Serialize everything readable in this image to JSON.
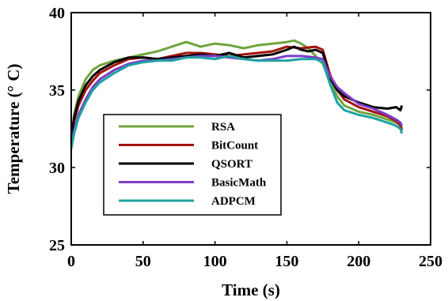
{
  "chart_data": {
    "type": "line",
    "xlabel": "Time (s)",
    "ylabel": "Temperature (° C)",
    "xlim": [
      0,
      250
    ],
    "ylim": [
      25,
      40
    ],
    "xticks": [
      0,
      50,
      100,
      150,
      200,
      250
    ],
    "yticks": [
      25,
      30,
      35,
      40
    ],
    "grid": false,
    "legend_position": "lower-left",
    "series": [
      {
        "name": "RSA",
        "color": "#6FA53C",
        "points": [
          [
            0,
            31.6
          ],
          [
            2,
            33.4
          ],
          [
            5,
            34.6
          ],
          [
            10,
            35.7
          ],
          [
            15,
            36.3
          ],
          [
            20,
            36.6
          ],
          [
            30,
            36.9
          ],
          [
            40,
            37.1
          ],
          [
            50,
            37.3
          ],
          [
            60,
            37.5
          ],
          [
            70,
            37.8
          ],
          [
            80,
            38.1
          ],
          [
            90,
            37.8
          ],
          [
            100,
            38.0
          ],
          [
            110,
            37.9
          ],
          [
            120,
            37.7
          ],
          [
            130,
            37.9
          ],
          [
            140,
            38.0
          ],
          [
            150,
            38.1
          ],
          [
            155,
            38.2
          ],
          [
            160,
            38.0
          ],
          [
            165,
            37.7
          ],
          [
            170,
            37.2
          ],
          [
            175,
            36.7
          ],
          [
            180,
            35.6
          ],
          [
            185,
            34.6
          ],
          [
            190,
            34.0
          ],
          [
            200,
            33.6
          ],
          [
            210,
            33.4
          ],
          [
            220,
            33.1
          ],
          [
            226,
            32.9
          ],
          [
            229,
            32.8
          ],
          [
            230,
            32.5
          ]
        ]
      },
      {
        "name": "BitCount",
        "color": "#A3140F",
        "points": [
          [
            0,
            31.8
          ],
          [
            2,
            33.0
          ],
          [
            5,
            34.0
          ],
          [
            10,
            35.0
          ],
          [
            15,
            35.6
          ],
          [
            20,
            36.1
          ],
          [
            30,
            36.6
          ],
          [
            40,
            37.0
          ],
          [
            50,
            37.1
          ],
          [
            60,
            37.0
          ],
          [
            70,
            37.2
          ],
          [
            80,
            37.4
          ],
          [
            90,
            37.4
          ],
          [
            100,
            37.3
          ],
          [
            110,
            37.2
          ],
          [
            120,
            37.3
          ],
          [
            130,
            37.4
          ],
          [
            140,
            37.5
          ],
          [
            150,
            37.8
          ],
          [
            160,
            37.7
          ],
          [
            170,
            37.8
          ],
          [
            175,
            37.6
          ],
          [
            180,
            36.0
          ],
          [
            185,
            35.0
          ],
          [
            190,
            34.4
          ],
          [
            200,
            33.9
          ],
          [
            210,
            33.6
          ],
          [
            220,
            33.3
          ],
          [
            226,
            33.0
          ],
          [
            229,
            32.7
          ],
          [
            230,
            32.4
          ]
        ]
      },
      {
        "name": "QSORT",
        "color": "#000000",
        "points": [
          [
            0,
            32.0
          ],
          [
            2,
            33.2
          ],
          [
            5,
            34.3
          ],
          [
            10,
            35.3
          ],
          [
            15,
            35.9
          ],
          [
            20,
            36.3
          ],
          [
            30,
            36.8
          ],
          [
            40,
            37.1
          ],
          [
            50,
            37.1
          ],
          [
            60,
            37.0
          ],
          [
            70,
            37.1
          ],
          [
            80,
            37.2
          ],
          [
            90,
            37.3
          ],
          [
            100,
            37.2
          ],
          [
            110,
            37.4
          ],
          [
            120,
            37.1
          ],
          [
            130,
            37.2
          ],
          [
            140,
            37.3
          ],
          [
            150,
            37.6
          ],
          [
            155,
            37.8
          ],
          [
            160,
            37.6
          ],
          [
            165,
            37.5
          ],
          [
            170,
            37.6
          ],
          [
            175,
            37.4
          ],
          [
            180,
            35.8
          ],
          [
            185,
            35.0
          ],
          [
            190,
            34.6
          ],
          [
            200,
            34.2
          ],
          [
            210,
            33.9
          ],
          [
            220,
            33.8
          ],
          [
            226,
            33.9
          ],
          [
            229,
            33.7
          ],
          [
            230,
            34.0
          ]
        ]
      },
      {
        "name": "BasicMath",
        "color": "#7D3DC9",
        "points": [
          [
            0,
            31.4
          ],
          [
            2,
            32.4
          ],
          [
            5,
            33.4
          ],
          [
            10,
            34.4
          ],
          [
            15,
            35.2
          ],
          [
            20,
            35.7
          ],
          [
            30,
            36.3
          ],
          [
            40,
            36.7
          ],
          [
            50,
            36.9
          ],
          [
            60,
            36.9
          ],
          [
            70,
            37.0
          ],
          [
            80,
            37.1
          ],
          [
            90,
            37.2
          ],
          [
            100,
            37.2
          ],
          [
            110,
            37.1
          ],
          [
            120,
            37.0
          ],
          [
            130,
            36.9
          ],
          [
            140,
            37.0
          ],
          [
            150,
            37.2
          ],
          [
            160,
            37.2
          ],
          [
            170,
            37.1
          ],
          [
            175,
            37.0
          ],
          [
            180,
            35.9
          ],
          [
            185,
            35.2
          ],
          [
            190,
            34.8
          ],
          [
            200,
            34.1
          ],
          [
            210,
            33.8
          ],
          [
            220,
            33.4
          ],
          [
            226,
            33.1
          ],
          [
            229,
            32.9
          ],
          [
            230,
            32.7
          ]
        ]
      },
      {
        "name": "ADPCM",
        "color": "#1FA3A0",
        "points": [
          [
            0,
            31.2
          ],
          [
            2,
            32.2
          ],
          [
            5,
            33.2
          ],
          [
            10,
            34.2
          ],
          [
            15,
            35.0
          ],
          [
            20,
            35.5
          ],
          [
            30,
            36.1
          ],
          [
            40,
            36.6
          ],
          [
            50,
            36.8
          ],
          [
            60,
            36.9
          ],
          [
            70,
            36.9
          ],
          [
            80,
            37.1
          ],
          [
            90,
            37.1
          ],
          [
            100,
            37.0
          ],
          [
            110,
            37.2
          ],
          [
            120,
            37.0
          ],
          [
            130,
            36.9
          ],
          [
            140,
            36.9
          ],
          [
            150,
            36.9
          ],
          [
            160,
            37.0
          ],
          [
            170,
            37.0
          ],
          [
            175,
            36.8
          ],
          [
            180,
            35.4
          ],
          [
            185,
            34.2
          ],
          [
            190,
            33.7
          ],
          [
            200,
            33.4
          ],
          [
            210,
            33.2
          ],
          [
            220,
            32.9
          ],
          [
            226,
            32.7
          ],
          [
            229,
            32.5
          ],
          [
            230,
            32.2
          ]
        ]
      }
    ]
  }
}
